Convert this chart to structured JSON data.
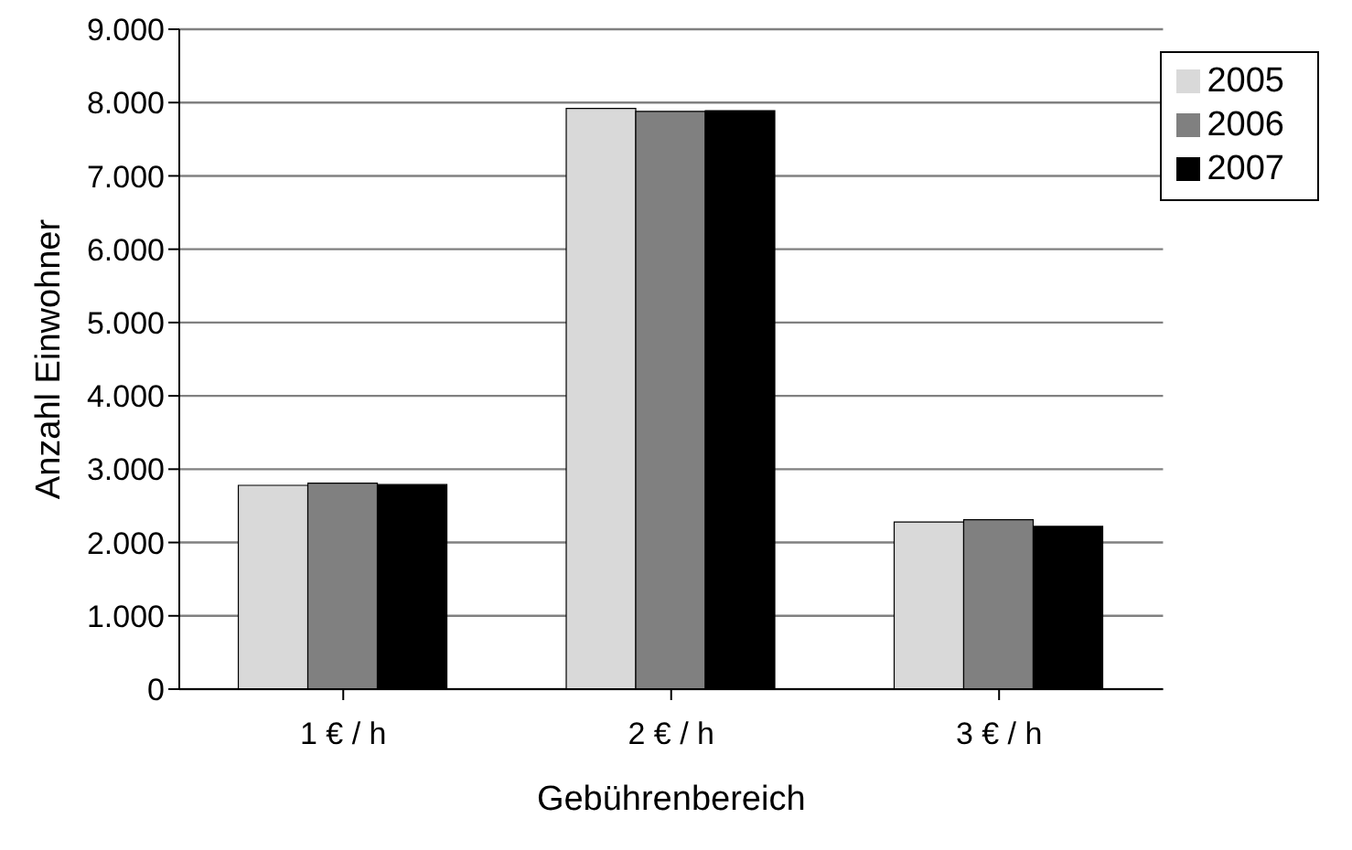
{
  "chart_data": {
    "type": "bar",
    "xlabel": "Gebührenbereich",
    "ylabel": "Anzahl Einwohner",
    "categories": [
      "1 € / h",
      "2 € / h",
      "3 € / h"
    ],
    "series": [
      {
        "name": "2005",
        "color": "#d9d9d9",
        "values": [
          2780,
          7920,
          2280
        ]
      },
      {
        "name": "2006",
        "color": "#808080",
        "values": [
          2810,
          7880,
          2310
        ]
      },
      {
        "name": "2007",
        "color": "#000000",
        "values": [
          2790,
          7890,
          2220
        ]
      }
    ],
    "ylim": [
      0,
      9000
    ],
    "yticks": [
      {
        "value": 0,
        "label": "0"
      },
      {
        "value": 1000,
        "label": "1.000"
      },
      {
        "value": 2000,
        "label": "2.000"
      },
      {
        "value": 3000,
        "label": "3.000"
      },
      {
        "value": 4000,
        "label": "4.000"
      },
      {
        "value": 5000,
        "label": "5.000"
      },
      {
        "value": 6000,
        "label": "6.000"
      },
      {
        "value": 7000,
        "label": "7.000"
      },
      {
        "value": 8000,
        "label": "8.000"
      },
      {
        "value": 9000,
        "label": "9.000"
      }
    ],
    "grid": "y",
    "legend": "top right"
  }
}
